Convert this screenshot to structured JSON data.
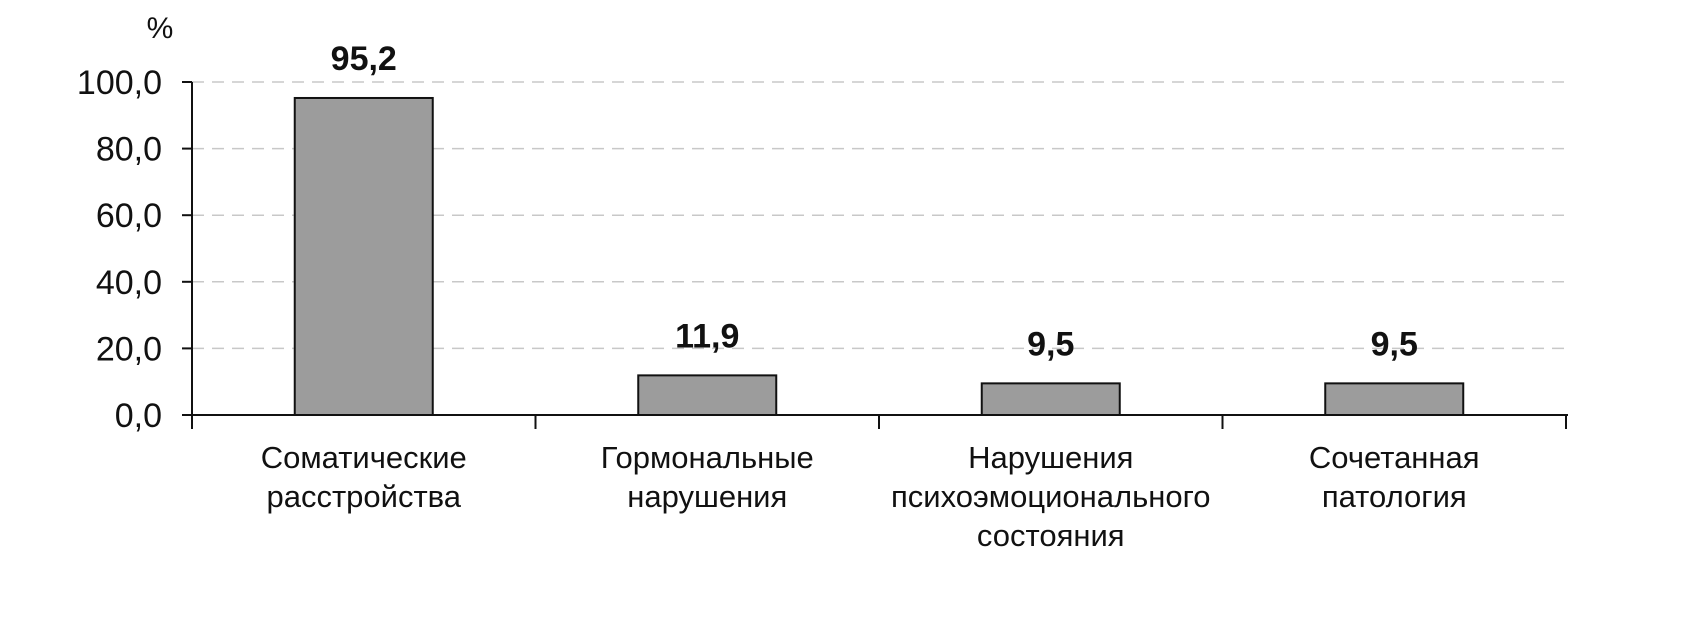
{
  "chart_data": {
    "type": "bar",
    "title": "",
    "xlabel": "",
    "ylabel": "%",
    "ylim": [
      0,
      100
    ],
    "yticks": [
      "0,0",
      "20,0",
      "40,0",
      "60,0",
      "80,0",
      "100,0"
    ],
    "categories": [
      [
        "Соматические",
        "расстройства"
      ],
      [
        "Гормональные",
        "нарушения"
      ],
      [
        "Нарушения",
        "психоэмоционального",
        "состояния"
      ],
      [
        "Сочетанная",
        "патология"
      ]
    ],
    "values": [
      95.2,
      11.9,
      9.5,
      9.5
    ],
    "value_labels": [
      "95,2",
      "11,9",
      "9,5",
      "9,5"
    ],
    "grid": true,
    "bar_color": "#9c9c9c"
  }
}
